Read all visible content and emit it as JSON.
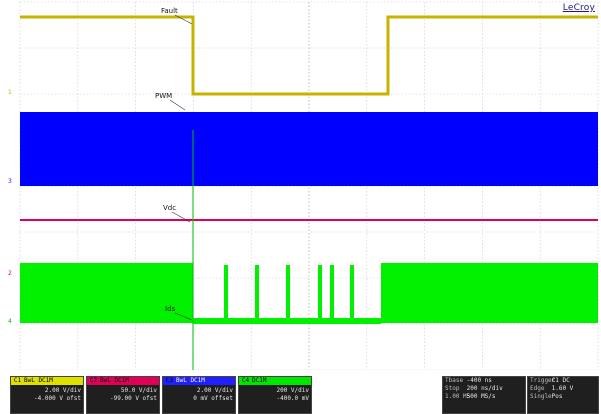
{
  "brand": "LeCroy",
  "traces": [
    {
      "label": "Fault",
      "color": "#c6b300"
    },
    {
      "label": "PWM",
      "color": "#0000ff"
    },
    {
      "label": "Vdc",
      "color": "#e0005a"
    },
    {
      "label": "Ids",
      "color": "#00e600"
    }
  ],
  "channels": [
    {
      "num": "C1",
      "name": "BwL DC1M",
      "line1": "2.00 V/div",
      "line2": "-4.000 V ofst",
      "color": "#e0e000"
    },
    {
      "num": "C2",
      "name": "BwL DC1M",
      "line1": "50.0 V/div",
      "line2": "-99.00 V ofst",
      "color": "#e0005a"
    },
    {
      "num": "C3",
      "name": "BwL DC1M",
      "line1": "2.00 V/div",
      "line2": "0 mV offset",
      "color": "#2020ff"
    },
    {
      "num": "C4",
      "name": "DC1M",
      "line1": "200 V/div",
      "line2": "-400.0 mV",
      "color": "#00e600"
    }
  ],
  "timebase": {
    "title": "Tbase",
    "value": "-400 ns",
    "rows": [
      {
        "k": "Stop",
        "v": "200 ns/div"
      },
      {
        "k": "1.00 MS",
        "v": "500 MS/s"
      }
    ]
  },
  "trigger": {
    "title": "Trigger",
    "value": "C1 DC",
    "rows": [
      {
        "k": "Edge",
        "v": "1.60 V"
      },
      {
        "k": "Single",
        "v": "Pos"
      }
    ]
  }
}
